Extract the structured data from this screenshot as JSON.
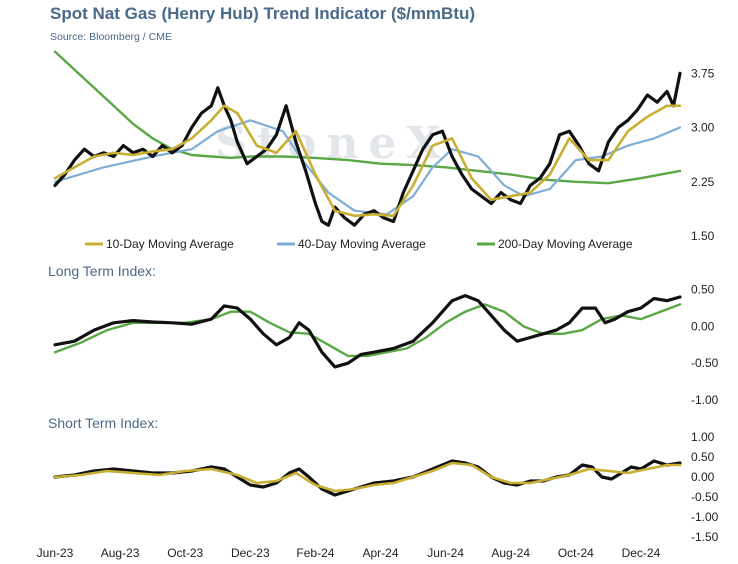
{
  "colors": {
    "price": "#111111",
    "ma10": "#c8ae33",
    "ma40": "#7eaed6",
    "ma200": "#5aa845",
    "title": "#4a6a89"
  },
  "watermark": "StoneX",
  "chart_data": [
    {
      "type": "line",
      "title": "Spot Nat Gas (Henry Hub) Trend Indicator ($/mmBtu)",
      "subtitle": "Source: Bloomberg / CME",
      "xlim": [
        0,
        19.2
      ],
      "ylim": [
        1.5,
        4.1
      ],
      "yticks": [
        1.5,
        2.25,
        3.0,
        3.75
      ],
      "ytick_labels": [
        "1.50",
        "2.25",
        "3.00",
        "3.75"
      ],
      "legend": "bottom",
      "series": [
        {
          "name": "",
          "role": "price",
          "x": [
            0,
            0.3,
            0.6,
            0.9,
            1.2,
            1.5,
            1.8,
            2.1,
            2.4,
            2.7,
            3.0,
            3.3,
            3.6,
            3.9,
            4.2,
            4.5,
            4.8,
            5.0,
            5.2,
            5.4,
            5.6,
            5.9,
            6.2,
            6.5,
            6.8,
            7.1,
            7.4,
            7.7,
            8.0,
            8.2,
            8.4,
            8.6,
            8.9,
            9.2,
            9.5,
            9.8,
            10.1,
            10.4,
            10.7,
            11.0,
            11.3,
            11.6,
            11.9,
            12.2,
            12.5,
            12.8,
            13.1,
            13.4,
            13.7,
            14.0,
            14.3,
            14.6,
            14.9,
            15.2,
            15.5,
            15.8,
            16.1,
            16.4,
            16.7,
            17.0,
            17.3,
            17.6,
            17.9,
            18.2,
            18.5,
            18.8,
            19.0,
            19.2
          ],
          "y": [
            2.2,
            2.35,
            2.55,
            2.7,
            2.6,
            2.65,
            2.6,
            2.75,
            2.65,
            2.7,
            2.6,
            2.75,
            2.65,
            2.75,
            3.0,
            3.2,
            3.3,
            3.55,
            3.3,
            3.1,
            2.8,
            2.5,
            2.6,
            2.7,
            2.9,
            3.3,
            2.8,
            2.4,
            1.95,
            1.7,
            1.65,
            1.9,
            1.75,
            1.65,
            1.8,
            1.85,
            1.75,
            1.7,
            2.1,
            2.4,
            2.7,
            2.9,
            2.95,
            2.6,
            2.35,
            2.15,
            2.05,
            1.95,
            2.1,
            2.0,
            1.95,
            2.2,
            2.3,
            2.5,
            2.9,
            2.95,
            2.75,
            2.5,
            2.4,
            2.8,
            3.0,
            3.1,
            3.25,
            3.45,
            3.35,
            3.5,
            3.3,
            3.75
          ]
        },
        {
          "name": "10-Day Moving Average",
          "role": "ma10",
          "x": [
            0,
            0.6,
            1.2,
            1.8,
            2.4,
            3.0,
            3.6,
            4.2,
            4.8,
            5.2,
            5.6,
            6.2,
            6.8,
            7.4,
            8.0,
            8.6,
            9.2,
            9.8,
            10.4,
            11.0,
            11.6,
            12.2,
            12.8,
            13.4,
            14.0,
            14.6,
            15.2,
            15.8,
            16.4,
            17.0,
            17.6,
            18.2,
            18.8,
            19.2
          ],
          "y": [
            2.3,
            2.45,
            2.6,
            2.65,
            2.62,
            2.67,
            2.7,
            2.85,
            3.1,
            3.3,
            3.2,
            2.75,
            2.65,
            2.95,
            2.35,
            1.85,
            1.78,
            1.8,
            1.78,
            2.2,
            2.75,
            2.85,
            2.3,
            2.0,
            2.05,
            2.1,
            2.35,
            2.85,
            2.55,
            2.55,
            2.95,
            3.15,
            3.3,
            3.3
          ]
        },
        {
          "name": "40-Day Moving Average",
          "role": "ma40",
          "x": [
            0,
            1.5,
            3.0,
            4.2,
            5.0,
            6.0,
            7.0,
            7.6,
            8.4,
            9.2,
            10.2,
            11.0,
            11.6,
            12.2,
            13.0,
            13.8,
            14.4,
            15.2,
            16.0,
            16.8,
            17.6,
            18.4,
            19.2
          ],
          "y": [
            2.25,
            2.45,
            2.6,
            2.7,
            2.95,
            3.1,
            2.95,
            2.55,
            2.1,
            1.85,
            1.8,
            2.05,
            2.45,
            2.7,
            2.6,
            2.2,
            2.05,
            2.15,
            2.55,
            2.6,
            2.75,
            2.85,
            3.0
          ]
        },
        {
          "name": "200-Day Moving Average",
          "role": "ma200",
          "x": [
            0,
            0.6,
            1.2,
            1.8,
            2.4,
            3.0,
            3.6,
            4.2,
            4.8,
            5.4,
            6.0,
            7.0,
            8.0,
            9.0,
            10.0,
            11.0,
            12.0,
            13.0,
            14.0,
            15.0,
            16.0,
            17.0,
            18.0,
            19.2
          ],
          "y": [
            4.05,
            3.8,
            3.55,
            3.3,
            3.05,
            2.85,
            2.7,
            2.62,
            2.6,
            2.58,
            2.6,
            2.6,
            2.58,
            2.55,
            2.5,
            2.48,
            2.45,
            2.4,
            2.35,
            2.28,
            2.25,
            2.23,
            2.3,
            2.4
          ]
        }
      ]
    },
    {
      "type": "line",
      "title": "Long Term Index:",
      "xlim": [
        0,
        19.2
      ],
      "ylim": [
        -1.0,
        0.55
      ],
      "yticks": [
        -1.0,
        -0.5,
        0.0,
        0.5
      ],
      "ytick_labels": [
        "-1.00",
        "-0.50",
        "0.00",
        "0.50"
      ],
      "series": [
        {
          "name": "",
          "role": "price",
          "x": [
            0,
            0.6,
            1.2,
            1.8,
            2.4,
            3.0,
            3.6,
            4.2,
            4.8,
            5.2,
            5.6,
            6.0,
            6.4,
            6.8,
            7.2,
            7.5,
            7.8,
            8.2,
            8.6,
            9.0,
            9.4,
            9.8,
            10.4,
            11.0,
            11.6,
            12.2,
            12.6,
            13.0,
            13.4,
            13.8,
            14.2,
            14.6,
            15.0,
            15.4,
            15.8,
            16.2,
            16.6,
            16.9,
            17.2,
            17.6,
            18.0,
            18.4,
            18.8,
            19.2
          ],
          "y": [
            -0.25,
            -0.2,
            -0.05,
            0.05,
            0.08,
            0.06,
            0.05,
            0.03,
            0.1,
            0.28,
            0.25,
            0.1,
            -0.1,
            -0.25,
            -0.15,
            0.05,
            -0.05,
            -0.35,
            -0.55,
            -0.5,
            -0.38,
            -0.35,
            -0.3,
            -0.2,
            0.05,
            0.35,
            0.42,
            0.35,
            0.15,
            -0.05,
            -0.2,
            -0.15,
            -0.1,
            -0.05,
            0.05,
            0.25,
            0.25,
            0.05,
            0.1,
            0.2,
            0.25,
            0.38,
            0.35,
            0.4
          ]
        },
        {
          "name": "",
          "role": "ma200",
          "x": [
            0,
            0.8,
            1.6,
            2.4,
            3.2,
            4.0,
            4.8,
            5.4,
            6.0,
            6.6,
            7.2,
            7.8,
            8.4,
            9.0,
            9.6,
            10.2,
            10.8,
            11.4,
            12.0,
            12.6,
            13.2,
            13.8,
            14.4,
            15.0,
            15.6,
            16.2,
            16.8,
            17.4,
            18.0,
            18.6,
            19.2
          ],
          "y": [
            -0.35,
            -0.22,
            -0.05,
            0.05,
            0.05,
            0.05,
            0.1,
            0.2,
            0.2,
            0.05,
            -0.08,
            -0.1,
            -0.25,
            -0.4,
            -0.4,
            -0.35,
            -0.3,
            -0.15,
            0.05,
            0.2,
            0.3,
            0.2,
            0.0,
            -0.1,
            -0.1,
            -0.05,
            0.1,
            0.15,
            0.1,
            0.2,
            0.3
          ]
        }
      ]
    },
    {
      "type": "line",
      "title": "Short Term Index:",
      "xlim": [
        0,
        19.2
      ],
      "ylim": [
        -1.5,
        1.0
      ],
      "yticks": [
        -1.5,
        -1.0,
        -0.5,
        0.0,
        0.5,
        1.0
      ],
      "ytick_labels": [
        "-1.50",
        "-1.00",
        "-0.50",
        "0.00",
        "0.50",
        "1.00"
      ],
      "x_tick_labels": [
        "Jun-23",
        "Aug-23",
        "Oct-23",
        "Dec-23",
        "Feb-24",
        "Apr-24",
        "Jun-24",
        "Aug-24",
        "Oct-24",
        "Dec-24"
      ],
      "series": [
        {
          "name": "",
          "role": "price",
          "x": [
            0,
            0.6,
            1.2,
            1.8,
            2.4,
            3.0,
            3.6,
            4.2,
            4.8,
            5.2,
            5.6,
            6.0,
            6.4,
            6.8,
            7.2,
            7.5,
            7.8,
            8.2,
            8.6,
            9.0,
            9.4,
            9.8,
            10.4,
            11.0,
            11.6,
            12.2,
            12.6,
            13.0,
            13.4,
            13.8,
            14.2,
            14.6,
            15.0,
            15.4,
            15.8,
            16.2,
            16.5,
            16.8,
            17.1,
            17.4,
            17.7,
            18.0,
            18.4,
            18.8,
            19.2
          ],
          "y": [
            0.0,
            0.05,
            0.15,
            0.2,
            0.15,
            0.1,
            0.1,
            0.15,
            0.25,
            0.2,
            0.0,
            -0.2,
            -0.25,
            -0.15,
            0.1,
            0.2,
            0.0,
            -0.3,
            -0.45,
            -0.35,
            -0.25,
            -0.15,
            -0.1,
            0.0,
            0.2,
            0.4,
            0.35,
            0.25,
            0.0,
            -0.15,
            -0.2,
            -0.1,
            -0.1,
            0.0,
            0.05,
            0.3,
            0.25,
            0.0,
            -0.05,
            0.1,
            0.25,
            0.2,
            0.4,
            0.3,
            0.35
          ]
        },
        {
          "name": "",
          "role": "ma10",
          "x": [
            0,
            0.8,
            1.6,
            2.4,
            3.2,
            4.0,
            4.8,
            5.6,
            6.2,
            6.8,
            7.4,
            8.0,
            8.6,
            9.2,
            9.8,
            10.4,
            11.0,
            11.6,
            12.2,
            12.8,
            13.4,
            14.0,
            14.6,
            15.2,
            15.8,
            16.4,
            17.0,
            17.6,
            18.2,
            18.8,
            19.2
          ],
          "y": [
            0.0,
            0.05,
            0.15,
            0.1,
            0.05,
            0.15,
            0.2,
            0.05,
            -0.15,
            -0.1,
            0.1,
            -0.2,
            -0.35,
            -0.3,
            -0.2,
            -0.15,
            0.0,
            0.15,
            0.35,
            0.3,
            0.0,
            -0.15,
            -0.15,
            -0.05,
            0.05,
            0.2,
            0.15,
            0.1,
            0.2,
            0.3,
            0.3
          ]
        }
      ]
    }
  ]
}
